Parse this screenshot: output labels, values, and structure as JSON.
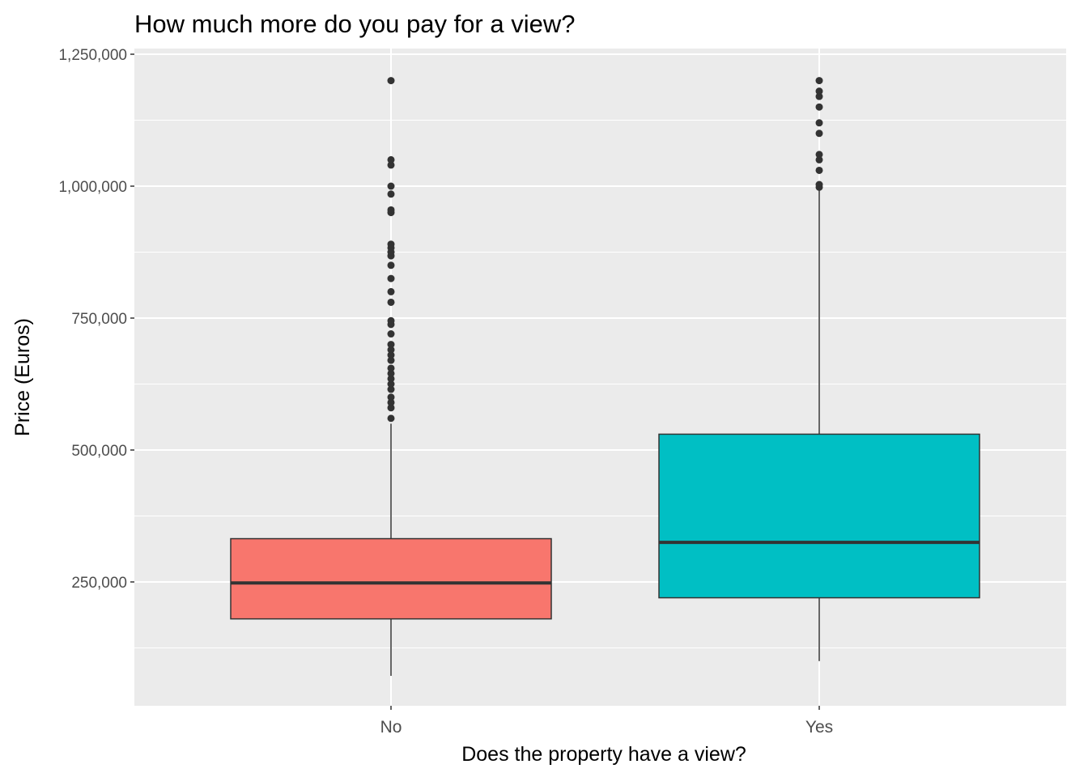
{
  "chart_data": {
    "type": "box",
    "title": "How much more do you pay for a view?",
    "xlabel": "Does the property have a view?",
    "ylabel": "Price (Euros)",
    "ylim": [
      0,
      1250000
    ],
    "y_ticks": [
      250000,
      500000,
      750000,
      1000000,
      1250000
    ],
    "y_tick_labels": [
      "250,000",
      "500,000",
      "750,000",
      "1,000,000",
      "1,250,000"
    ],
    "grid": true,
    "legend": "none",
    "categories": [
      "No",
      "Yes"
    ],
    "series": [
      {
        "category": "No",
        "color": "#F8766D",
        "min": 72000,
        "q1": 180000,
        "median": 248000,
        "q3": 332000,
        "max": 550000,
        "outliers": [
          560000,
          580000,
          590000,
          600000,
          615000,
          625000,
          635000,
          645000,
          655000,
          670000,
          680000,
          690000,
          700000,
          720000,
          738000,
          745000,
          780000,
          800000,
          825000,
          850000,
          868000,
          875000,
          883000,
          890000,
          950000,
          955000,
          985000,
          1000000,
          1040000,
          1050000,
          1200000
        ]
      },
      {
        "category": "Yes",
        "color": "#00BFC4",
        "min": 100000,
        "q1": 220000,
        "median": 325000,
        "q3": 530000,
        "max": 995000,
        "outliers": [
          998000,
          1003000,
          1030000,
          1050000,
          1060000,
          1100000,
          1120000,
          1150000,
          1170000,
          1180000,
          1200000
        ]
      }
    ]
  }
}
